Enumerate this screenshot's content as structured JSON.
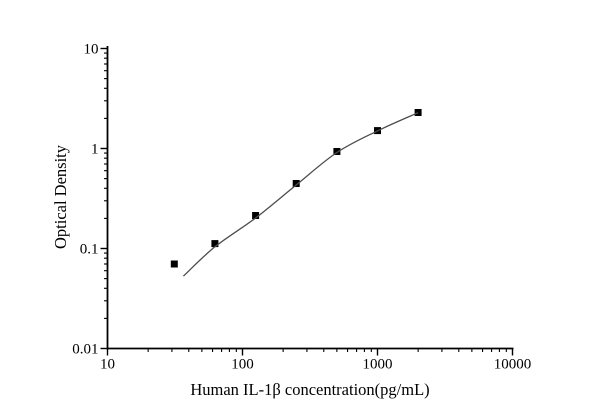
{
  "chart_data": {
    "type": "scatter",
    "title": "",
    "xlabel": "Human IL-1β concentration(pg/mL)",
    "ylabel": "Optical Density",
    "x_scale": "log",
    "y_scale": "log",
    "xlim": [
      10,
      10000
    ],
    "ylim": [
      0.01,
      10
    ],
    "grid": false,
    "legend_position": "none",
    "background": "#ffffff",
    "axis_color": "#000000",
    "text_color": "#000000",
    "x_ticks": [
      {
        "value": 10,
        "label": "10"
      },
      {
        "value": 100,
        "label": "100"
      },
      {
        "value": 1000,
        "label": "1000"
      },
      {
        "value": 10000,
        "label": "10000"
      }
    ],
    "y_ticks": [
      {
        "value": 10,
        "label": "10"
      },
      {
        "value": 1,
        "label": "1"
      },
      {
        "value": 0.1,
        "label": "0.1"
      },
      {
        "value": 0.01,
        "label": "0.01"
      }
    ],
    "series": [
      {
        "name": "standard-points",
        "type": "scatter",
        "marker": "filled-square",
        "marker_size": 7,
        "color": "#000000",
        "points": [
          {
            "x": 31.25,
            "y": 0.07
          },
          {
            "x": 62.5,
            "y": 0.112
          },
          {
            "x": 125,
            "y": 0.214
          },
          {
            "x": 250,
            "y": 0.447
          },
          {
            "x": 500,
            "y": 0.933
          },
          {
            "x": 1000,
            "y": 1.51
          },
          {
            "x": 2000,
            "y": 2.29
          }
        ]
      },
      {
        "name": "fitted-curve",
        "type": "line",
        "color": "#4d4d4d",
        "points": [
          {
            "x": 36.5,
            "y": 0.053
          },
          {
            "x": 62.5,
            "y": 0.104
          },
          {
            "x": 125,
            "y": 0.202
          },
          {
            "x": 250,
            "y": 0.432
          },
          {
            "x": 500,
            "y": 0.912
          },
          {
            "x": 1000,
            "y": 1.5
          },
          {
            "x": 2000,
            "y": 2.28
          }
        ]
      }
    ]
  }
}
